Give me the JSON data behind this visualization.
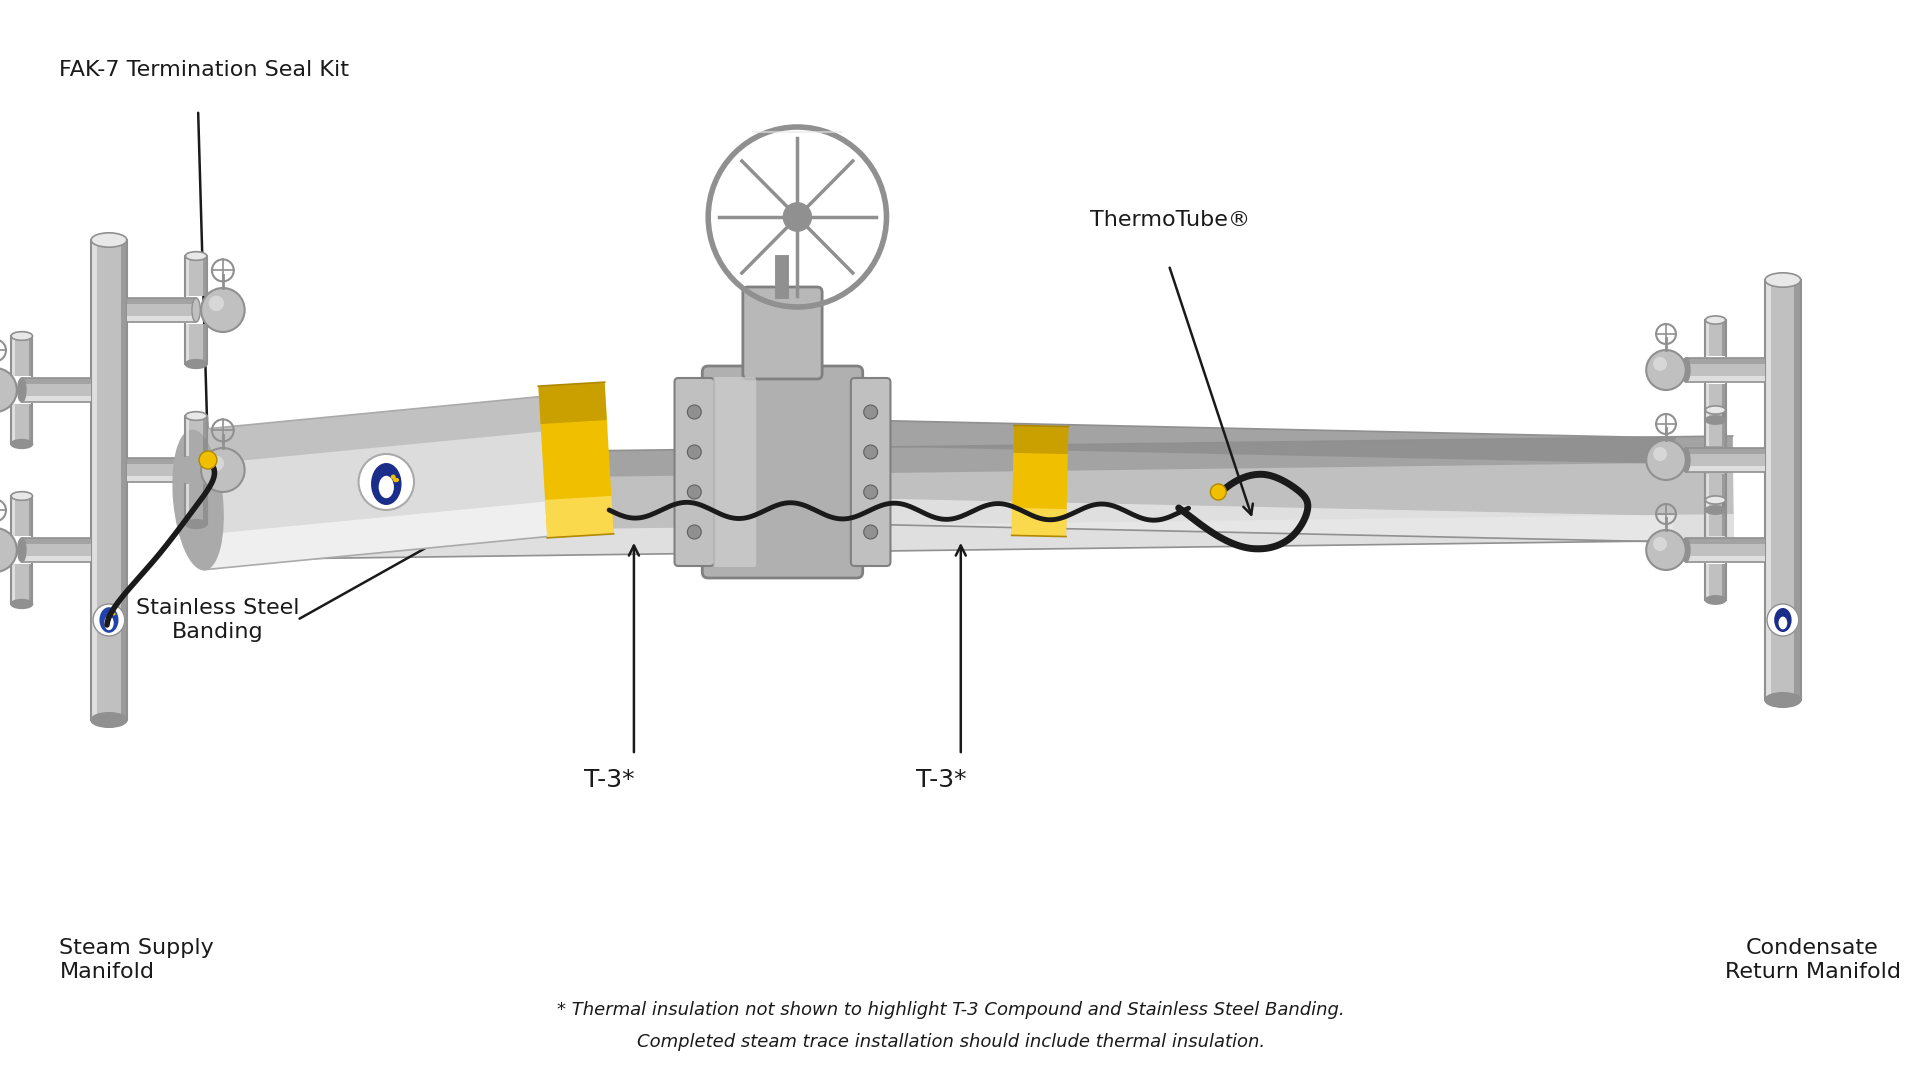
{
  "background_color": "#ffffff",
  "labels": {
    "fak7": "FAK-7 Termination Seal Kit",
    "steam_supply": "Steam Supply\nManifold",
    "stainless_banding": "Stainless Steel\nBanding",
    "thermotube": "ThermoTube®",
    "t3_left": "T-3*",
    "t3_right": "T-3*",
    "condensate": "Condensate\nReturn Manifold",
    "footnote_line1": "* Thermal insulation not shown to highlight T-3 Compound and Stainless Steel Banding.",
    "footnote_line2": "Completed steam trace installation should include thermal insulation."
  },
  "pipe_color": "#c0c0c0",
  "pipe_dark": "#909090",
  "pipe_light": "#e8e8e8",
  "pipe_shadow": "#787878",
  "yellow_color": "#f0c000",
  "yellow_light": "#ffe060",
  "yellow_dark": "#b08800",
  "black_color": "#1a1a1a",
  "text_color": "#1a1a1a",
  "font_size_label": 16,
  "font_size_t3": 18,
  "font_size_footnote": 13
}
